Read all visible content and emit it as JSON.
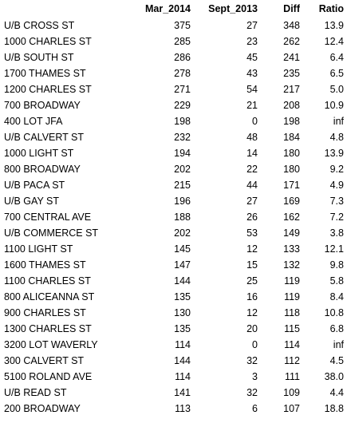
{
  "chart_data": {
    "type": "table",
    "columns": [
      "",
      "Mar_2014",
      "Sept_2013",
      "Diff",
      "Ratio"
    ],
    "rows": [
      [
        "U/B CROSS ST",
        "375",
        "27",
        "348",
        "13.9"
      ],
      [
        "1000 CHARLES ST",
        "285",
        "23",
        "262",
        "12.4"
      ],
      [
        "U/B SOUTH ST",
        "286",
        "45",
        "241",
        "6.4"
      ],
      [
        "1700 THAMES ST",
        "278",
        "43",
        "235",
        "6.5"
      ],
      [
        "1200 CHARLES ST",
        "271",
        "54",
        "217",
        "5.0"
      ],
      [
        "700 BROADWAY",
        "229",
        "21",
        "208",
        "10.9"
      ],
      [
        "400 LOT JFA",
        "198",
        "0",
        "198",
        "inf"
      ],
      [
        "U/B CALVERT ST",
        "232",
        "48",
        "184",
        "4.8"
      ],
      [
        "1000 LIGHT ST",
        "194",
        "14",
        "180",
        "13.9"
      ],
      [
        "800 BROADWAY",
        "202",
        "22",
        "180",
        "9.2"
      ],
      [
        "U/B PACA ST",
        "215",
        "44",
        "171",
        "4.9"
      ],
      [
        "U/B GAY ST",
        "196",
        "27",
        "169",
        "7.3"
      ],
      [
        "700 CENTRAL AVE",
        "188",
        "26",
        "162",
        "7.2"
      ],
      [
        "U/B COMMERCE ST",
        "202",
        "53",
        "149",
        "3.8"
      ],
      [
        "1100 LIGHT ST",
        "145",
        "12",
        "133",
        "12.1"
      ],
      [
        "1600 THAMES ST",
        "147",
        "15",
        "132",
        "9.8"
      ],
      [
        "1100 CHARLES ST",
        "144",
        "25",
        "119",
        "5.8"
      ],
      [
        "800 ALICEANNA ST",
        "135",
        "16",
        "119",
        "8.4"
      ],
      [
        "900 CHARLES ST",
        "130",
        "12",
        "118",
        "10.8"
      ],
      [
        "1300 CHARLES ST",
        "135",
        "20",
        "115",
        "6.8"
      ],
      [
        "3200 LOT WAVERLY",
        "114",
        "0",
        "114",
        "inf"
      ],
      [
        "300 CALVERT ST",
        "144",
        "32",
        "112",
        "4.5"
      ],
      [
        "5100 ROLAND AVE",
        "114",
        "3",
        "111",
        "38.0"
      ],
      [
        "U/B READ ST",
        "141",
        "32",
        "109",
        "4.4"
      ],
      [
        "200 BROADWAY",
        "113",
        "6",
        "107",
        "18.8"
      ]
    ]
  }
}
